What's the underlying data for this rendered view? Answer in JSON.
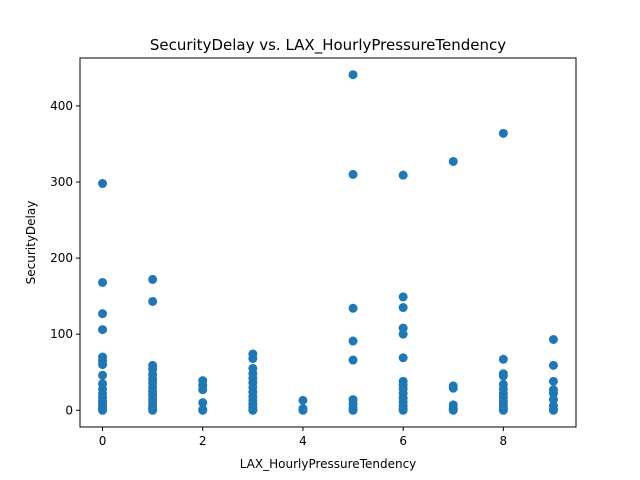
{
  "chart_data": {
    "type": "scatter",
    "title": "SecurityDelay vs. LAX_HourlyPressureTendency",
    "xlabel": "LAX_HourlyPressureTendency",
    "ylabel": "SecurityDelay",
    "xlim": [
      -0.45,
      9.45
    ],
    "ylim": [
      -22,
      463
    ],
    "xticks": [
      0,
      2,
      4,
      6,
      8
    ],
    "yticks": [
      0,
      100,
      200,
      300,
      400
    ],
    "grid": false,
    "marker_color": "#1f77b4",
    "series": [
      {
        "points": [
          [
            0,
            298
          ],
          [
            0,
            168
          ],
          [
            0,
            127
          ],
          [
            0,
            106
          ],
          [
            0,
            70
          ],
          [
            0,
            65
          ],
          [
            0,
            60
          ],
          [
            0,
            46
          ],
          [
            0,
            35
          ],
          [
            0,
            28
          ],
          [
            0,
            22
          ],
          [
            0,
            17
          ],
          [
            0,
            12
          ],
          [
            0,
            8
          ],
          [
            0,
            5
          ],
          [
            0,
            2
          ],
          [
            0,
            0
          ],
          [
            1,
            172
          ],
          [
            1,
            143
          ],
          [
            1,
            59
          ],
          [
            1,
            54
          ],
          [
            1,
            47
          ],
          [
            1,
            41
          ],
          [
            1,
            36
          ],
          [
            1,
            30
          ],
          [
            1,
            25
          ],
          [
            1,
            20
          ],
          [
            1,
            15
          ],
          [
            1,
            11
          ],
          [
            1,
            7
          ],
          [
            1,
            4
          ],
          [
            1,
            1
          ],
          [
            1,
            0
          ],
          [
            2,
            39
          ],
          [
            2,
            33
          ],
          [
            2,
            27
          ],
          [
            2,
            10
          ],
          [
            2,
            1
          ],
          [
            2,
            0
          ],
          [
            3,
            74
          ],
          [
            3,
            68
          ],
          [
            3,
            55
          ],
          [
            3,
            48
          ],
          [
            3,
            42
          ],
          [
            3,
            36
          ],
          [
            3,
            30
          ],
          [
            3,
            24
          ],
          [
            3,
            18
          ],
          [
            3,
            13
          ],
          [
            3,
            8
          ],
          [
            3,
            4
          ],
          [
            3,
            1
          ],
          [
            3,
            0
          ],
          [
            4,
            13
          ],
          [
            4,
            2
          ],
          [
            4,
            0
          ],
          [
            5,
            441
          ],
          [
            5,
            310
          ],
          [
            5,
            134
          ],
          [
            5,
            91
          ],
          [
            5,
            66
          ],
          [
            5,
            14
          ],
          [
            5,
            8
          ],
          [
            5,
            3
          ],
          [
            5,
            0
          ],
          [
            6,
            309
          ],
          [
            6,
            149
          ],
          [
            6,
            135
          ],
          [
            6,
            108
          ],
          [
            6,
            100
          ],
          [
            6,
            69
          ],
          [
            6,
            38
          ],
          [
            6,
            33
          ],
          [
            6,
            28
          ],
          [
            6,
            22
          ],
          [
            6,
            16
          ],
          [
            6,
            11
          ],
          [
            6,
            6
          ],
          [
            6,
            2
          ],
          [
            6,
            0
          ],
          [
            7,
            327
          ],
          [
            7,
            32
          ],
          [
            7,
            29
          ],
          [
            7,
            7
          ],
          [
            7,
            2
          ],
          [
            7,
            0
          ],
          [
            8,
            364
          ],
          [
            8,
            67
          ],
          [
            8,
            48
          ],
          [
            8,
            45
          ],
          [
            8,
            34
          ],
          [
            8,
            28
          ],
          [
            8,
            22
          ],
          [
            8,
            17
          ],
          [
            8,
            12
          ],
          [
            8,
            8
          ],
          [
            8,
            4
          ],
          [
            8,
            1
          ],
          [
            8,
            0
          ],
          [
            9,
            93
          ],
          [
            9,
            59
          ],
          [
            9,
            38
          ],
          [
            9,
            27
          ],
          [
            9,
            22
          ],
          [
            9,
            14
          ],
          [
            9,
            6
          ],
          [
            9,
            1
          ],
          [
            9,
            0
          ]
        ]
      }
    ]
  }
}
